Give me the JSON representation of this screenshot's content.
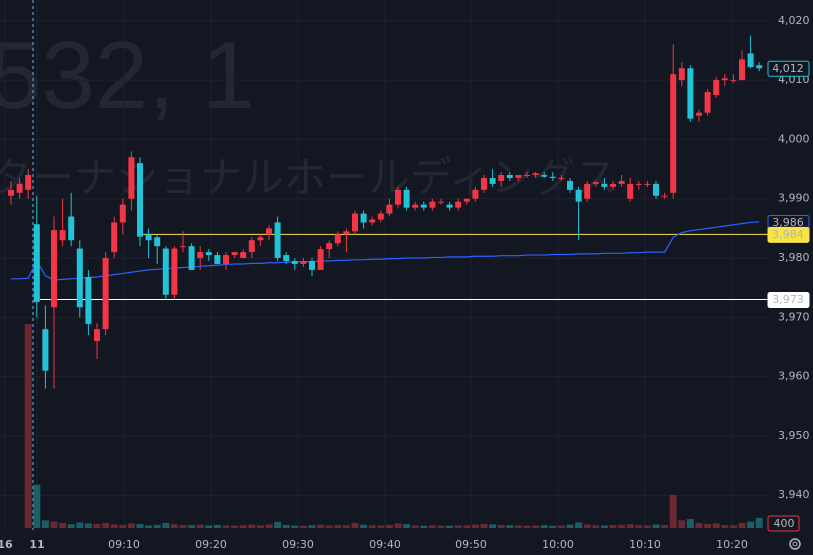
{
  "watermark": {
    "symbol": "532, 1",
    "name": "ターナショナルホールディングス"
  },
  "chart_data": {
    "type": "candlestick",
    "x_ticks": [
      "16",
      "11",
      "09:10",
      "09:20",
      "09:30",
      "09:40",
      "09:50",
      "10:00",
      "10:10",
      "10:20"
    ],
    "ylim": [
      3936.5,
      4022.5
    ],
    "yticks": [
      {
        "value": 4020,
        "label": "4,020"
      },
      {
        "value": 4010,
        "label": "4,010"
      },
      {
        "value": 4000,
        "label": "4,000"
      },
      {
        "value": 3990,
        "label": "3,990"
      },
      {
        "value": 3980,
        "label": "3,980"
      },
      {
        "value": 3970,
        "label": "3,970"
      },
      {
        "value": 3960,
        "label": "3,960"
      },
      {
        "value": 3950,
        "label": "3,950"
      },
      {
        "value": 3940,
        "label": "3,940"
      }
    ],
    "up_color": "#f23645",
    "down_color": "#22c3d6",
    "ohlc": [
      [
        3990.5,
        3993,
        3989,
        3991.5
      ],
      [
        3991,
        3993.5,
        3990,
        3992.5
      ],
      [
        3991.5,
        3995,
        3990,
        3994
      ],
      [
        3985.7,
        3990.5,
        3970,
        3972.6
      ],
      [
        3968,
        3972,
        3958,
        3961
      ],
      [
        3971.7,
        3987,
        3958,
        3984.7
      ],
      [
        3983,
        3990,
        3982,
        3984.7
      ],
      [
        3987,
        3991,
        3982,
        3983
      ],
      [
        3981.6,
        3983,
        3970,
        3971.7
      ],
      [
        3976.8,
        3978,
        3967,
        3968.9
      ],
      [
        3966,
        3969,
        3963,
        3968
      ],
      [
        3968,
        3981,
        3967,
        3980
      ],
      [
        3981,
        3987,
        3980,
        3986
      ],
      [
        3986,
        3990,
        3984,
        3989
      ],
      [
        3990,
        3998,
        3988,
        3997
      ],
      [
        3996,
        3997,
        3982,
        3983.6
      ],
      [
        3984,
        3985,
        3980,
        3983
      ],
      [
        3983.5,
        3984,
        3979,
        3982
      ],
      [
        3981.6,
        3982,
        3973,
        3973.8
      ],
      [
        3973.8,
        3982,
        3973,
        3981.6
      ],
      [
        3982,
        3984.5,
        3981,
        3982
      ],
      [
        3982,
        3982.5,
        3978,
        3978
      ],
      [
        3980,
        3982,
        3978,
        3981
      ],
      [
        3981,
        3981.5,
        3979.5,
        3980.5
      ],
      [
        3980.5,
        3981,
        3979,
        3979
      ],
      [
        3979,
        3981,
        3978,
        3980.5
      ],
      [
        3980.5,
        3981,
        3980,
        3981
      ],
      [
        3980,
        3981.5,
        3980,
        3981
      ],
      [
        3981,
        3983.5,
        3980,
        3983
      ],
      [
        3983,
        3984,
        3982,
        3983.5
      ],
      [
        3984,
        3985.5,
        3983,
        3985
      ],
      [
        3986,
        3987,
        3979.5,
        3980
      ],
      [
        3980.5,
        3981,
        3979,
        3979.5
      ],
      [
        3979.5,
        3980,
        3978,
        3979
      ],
      [
        3979,
        3980,
        3978.5,
        3979.5
      ],
      [
        3979.5,
        3980,
        3977,
        3978
      ],
      [
        3978,
        3982,
        3978,
        3981.5
      ],
      [
        3981.5,
        3983,
        3980,
        3982.5
      ],
      [
        3982.5,
        3984.5,
        3982,
        3984
      ],
      [
        3984,
        3985,
        3981,
        3984.5
      ],
      [
        3984.5,
        3988,
        3984,
        3987.5
      ],
      [
        3987.5,
        3988,
        3985,
        3986
      ],
      [
        3986,
        3987,
        3985.5,
        3986.5
      ],
      [
        3986.5,
        3988,
        3986,
        3987.5
      ],
      [
        3987.5,
        3990,
        3987,
        3989
      ],
      [
        3989,
        3992,
        3988.5,
        3991.5
      ],
      [
        3991.5,
        3992,
        3988,
        3988.5
      ],
      [
        3988.5,
        3989.5,
        3988,
        3989
      ],
      [
        3989,
        3989.5,
        3988,
        3988.5
      ],
      [
        3988.5,
        3990,
        3988,
        3989.5
      ],
      [
        3989.5,
        3990,
        3989,
        3989.5
      ],
      [
        3989,
        3989.5,
        3988,
        3988.5
      ],
      [
        3988.5,
        3990,
        3988,
        3989.5
      ],
      [
        3989.5,
        3990,
        3989,
        3990
      ],
      [
        3990,
        3992,
        3989.5,
        3991.5
      ],
      [
        3991.5,
        3994,
        3991,
        3993.5
      ],
      [
        3993.5,
        3995,
        3992,
        3992.5
      ],
      [
        3993,
        3994.5,
        3992,
        3994
      ],
      [
        3994,
        3994.5,
        3993,
        3993.5
      ],
      [
        3993.5,
        3994,
        3993,
        3994
      ],
      [
        3994,
        3994.5,
        3993.5,
        3994
      ],
      [
        3994,
        3994.5,
        3993.5,
        3994.3
      ],
      [
        3994,
        3994.5,
        3993.5,
        3993.7
      ],
      [
        3993.7,
        3994.5,
        3993,
        3993.5
      ],
      [
        3993.5,
        3994,
        3993,
        3993.5
      ],
      [
        3993,
        3993.5,
        3991,
        3991.5
      ],
      [
        3991.5,
        3992,
        3983,
        3989.5
      ],
      [
        3990,
        3993,
        3989.5,
        3992.5
      ],
      [
        3992.5,
        3993,
        3992,
        3992.8
      ],
      [
        3992.5,
        3993.5,
        3991.5,
        3992
      ],
      [
        3992,
        3993,
        3991.5,
        3992.5
      ],
      [
        3992.5,
        3994,
        3992,
        3993
      ],
      [
        3990,
        3993.5,
        3989.5,
        3992.5
      ],
      [
        3992.5,
        3993,
        3991.5,
        3992.5
      ],
      [
        3992.5,
        3993,
        3992,
        3992.5
      ],
      [
        3992.5,
        3993,
        3990,
        3990.5
      ],
      [
        3990.5,
        3991,
        3990,
        3990.5
      ],
      [
        3991,
        4016,
        3990,
        4011
      ],
      [
        4010,
        4013,
        4009,
        4012
      ],
      [
        4012,
        4012.5,
        4003,
        4003.5
      ],
      [
        4004,
        4005,
        4003,
        4004.5
      ],
      [
        4004.5,
        4008.5,
        4004,
        4008
      ],
      [
        4007.5,
        4010.5,
        4007,
        4010
      ],
      [
        4010,
        4011,
        4009,
        4010.3
      ],
      [
        4010,
        4011,
        4009.5,
        4010
      ],
      [
        4010,
        4015,
        4010,
        4013.5
      ],
      [
        4014.5,
        4017.5,
        4012,
        4012.2
      ],
      [
        4012.5,
        4013,
        4011.5,
        4012
      ]
    ],
    "volume": [
      0,
      0,
      8000,
      1700,
      300,
      250,
      200,
      150,
      220,
      180,
      160,
      200,
      140,
      120,
      180,
      160,
      100,
      120,
      200,
      150,
      120,
      110,
      130,
      100,
      120,
      100,
      90,
      110,
      130,
      100,
      140,
      240,
      120,
      100,
      90,
      110,
      130,
      100,
      120,
      110,
      200,
      130,
      110,
      100,
      120,
      180,
      150,
      100,
      90,
      110,
      100,
      90,
      100,
      110,
      130,
      160,
      140,
      120,
      110,
      100,
      90,
      100,
      110,
      90,
      100,
      130,
      220,
      140,
      110,
      100,
      120,
      130,
      150,
      110,
      100,
      140,
      120,
      1300,
      300,
      350,
      200,
      160,
      180,
      120,
      110,
      200,
      250,
      400
    ],
    "value_labels": {
      "volume_last": "400"
    },
    "vwap": {
      "color": "#2962ff",
      "values": [
        3976.5,
        3976.5,
        3976.6,
        3979.5,
        3977,
        3976.3,
        3976.4,
        3976.5,
        3976.6,
        3976.7,
        3976.8,
        3977,
        3977.2,
        3977.4,
        3977.6,
        3977.8,
        3978,
        3978.1,
        3978.2,
        3978.3,
        3978.4,
        3978.5,
        3978.6,
        3978.7,
        3978.8,
        3978.9,
        3979,
        3979,
        3979.1,
        3979.1,
        3979.2,
        3979.2,
        3979.3,
        3979.3,
        3979.4,
        3979.4,
        3979.5,
        3979.5,
        3979.6,
        3979.6,
        3979.7,
        3979.7,
        3979.8,
        3979.8,
        3979.9,
        3979.9,
        3980,
        3980,
        3980,
        3980.1,
        3980.1,
        3980.2,
        3980.2,
        3980.2,
        3980.3,
        3980.3,
        3980.3,
        3980.4,
        3980.4,
        3980.4,
        3980.5,
        3980.5,
        3980.5,
        3980.6,
        3980.6,
        3980.6,
        3980.7,
        3980.7,
        3980.7,
        3980.8,
        3980.8,
        3980.8,
        3980.9,
        3980.9,
        3981,
        3981,
        3981,
        3983.5,
        3984.3,
        3984.6,
        3984.8,
        3985,
        3985.2,
        3985.4,
        3985.6,
        3985.8,
        3986,
        3986.1
      ]
    },
    "price_labels": [
      {
        "value": 4012,
        "label": "4,012",
        "color": "#22c3d6",
        "filled": false
      },
      {
        "value": 3986,
        "label": "3,986",
        "color": "#2962ff",
        "filled": false
      },
      {
        "value": 3984,
        "label": "3,984",
        "color": "#f7e34a",
        "filled": true,
        "line": true
      },
      {
        "value": 3973,
        "label": "3,973",
        "color": "#ffffff",
        "filled": true,
        "line": true
      }
    ]
  }
}
